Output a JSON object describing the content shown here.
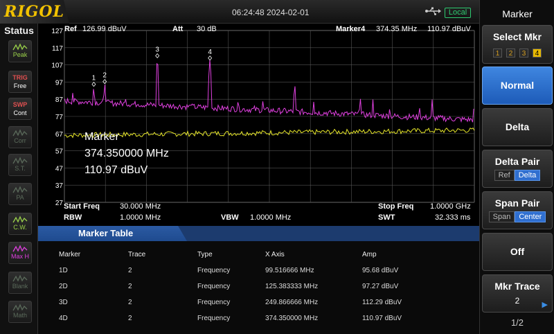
{
  "brand": "RIGOL",
  "datetime": "06:24:48 2024-02-01",
  "remote_status": "Local",
  "status_panel": {
    "title": "Status",
    "items": [
      {
        "top": "Peak",
        "state": "on"
      },
      {
        "top": "TRIG",
        "bottom": "Free",
        "state": "on"
      },
      {
        "top": "SWP",
        "bottom": "Cont",
        "state": "on"
      },
      {
        "top": "Corr",
        "state": "off"
      },
      {
        "top": "S.T.",
        "state": "off"
      },
      {
        "top": "PA",
        "state": "off"
      },
      {
        "top": "C.W.",
        "state": "on"
      },
      {
        "top": "Max H",
        "state": "mag"
      },
      {
        "top": "Blank",
        "state": "off"
      },
      {
        "top": "Math",
        "state": "off"
      }
    ]
  },
  "display": {
    "ref_label": "Ref",
    "ref_value": "126.99 dBuV",
    "att_label": "Att",
    "att_value": "30 dB",
    "marker_label": "Marker4",
    "marker_freq": "374.35 MHz",
    "marker_amp": "110.97 dBuV",
    "y_ticks": [
      "127",
      "117",
      "107",
      "97",
      "87",
      "77",
      "67",
      "57",
      "47",
      "37",
      "27"
    ],
    "readout_title": "Marker",
    "readout_freq": "374.350000 MHz",
    "readout_amp": "110.97 dBuV",
    "marker_labels": [
      "1",
      "2",
      "3",
      "4"
    ],
    "colors": {
      "trace1": "#e8e82a",
      "trace2": "#e040e0",
      "grid": "#555555"
    }
  },
  "params": {
    "start_label": "Start Freq",
    "start_value": "30.000 MHz",
    "stop_label": "Stop Freq",
    "stop_value": "1.0000 GHz",
    "rbw_label": "RBW",
    "rbw_value": "1.0000 MHz",
    "vbw_label": "VBW",
    "vbw_value": "1.0000 MHz",
    "swt_label": "SWT",
    "swt_value": "32.333 ms"
  },
  "marker_table": {
    "title": "Marker Table",
    "headers": [
      "Marker",
      "Trace",
      "Type",
      "X Axis",
      "Amp"
    ],
    "rows": [
      [
        "1D",
        "2",
        "Frequency",
        "99.516666 MHz",
        "95.68 dBuV"
      ],
      [
        "2D",
        "2",
        "Frequency",
        "125.383333 MHz",
        "97.27 dBuV"
      ],
      [
        "3D",
        "2",
        "Frequency",
        "249.866666 MHz",
        "112.29 dBuV"
      ],
      [
        "4D",
        "2",
        "Frequency",
        "374.350000 MHz",
        "110.97 dBuV"
      ]
    ]
  },
  "right_panel": {
    "title": "Marker",
    "select_mkr": {
      "label": "Select Mkr",
      "options": [
        "1",
        "2",
        "3",
        "4"
      ],
      "selected": "4"
    },
    "normal": "Normal",
    "delta": "Delta",
    "delta_pair": {
      "label": "Delta Pair",
      "options": [
        "Ref",
        "Delta"
      ],
      "selected": "Delta"
    },
    "span_pair": {
      "label": "Span Pair",
      "options": [
        "Span",
        "Center"
      ],
      "selected": "Center"
    },
    "off": "Off",
    "mkr_trace": {
      "label": "Mkr Trace",
      "value": "2"
    },
    "page": "1/2"
  }
}
